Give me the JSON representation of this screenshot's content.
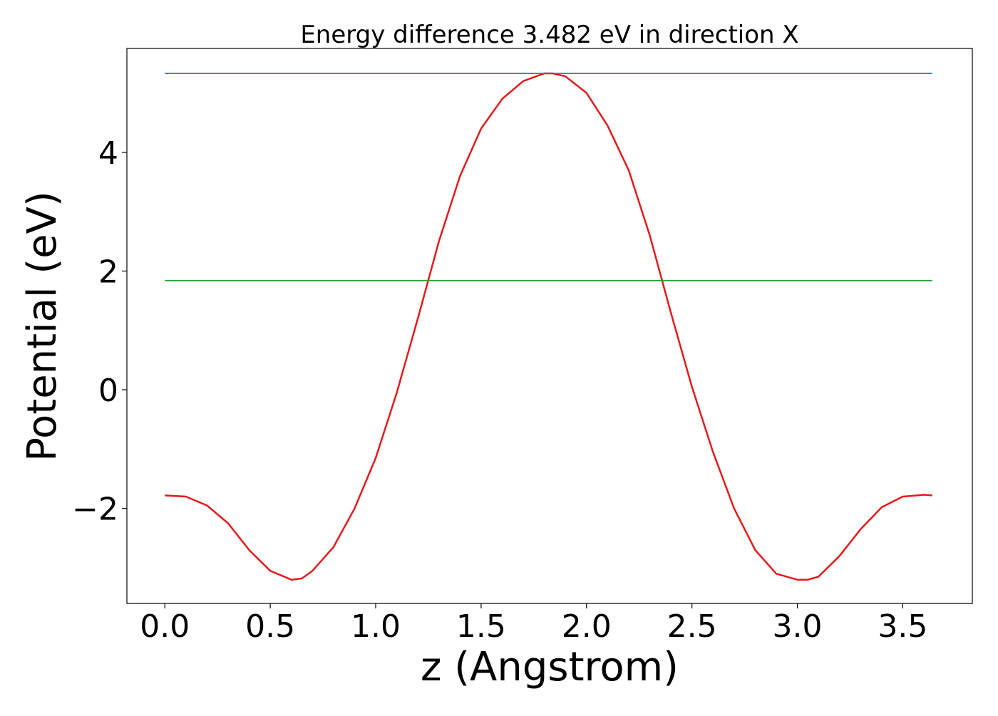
{
  "chart_data": {
    "type": "line",
    "title": "Energy difference 3.482 eV in direction X",
    "xlabel": "z (Angstrom)",
    "ylabel": "Potential (eV)",
    "xlim": [
      -0.18,
      3.83
    ],
    "ylim": [
      -3.6,
      5.75
    ],
    "grid": false,
    "x_ticks": [
      0.0,
      0.5,
      1.0,
      1.5,
      2.0,
      2.5,
      3.0,
      3.5
    ],
    "x_tick_labels": [
      "0.0",
      "0.5",
      "1.0",
      "1.5",
      "2.0",
      "2.5",
      "3.0",
      "3.5"
    ],
    "y_ticks": [
      -2,
      0,
      2,
      4
    ],
    "y_tick_labels": [
      "−2",
      "0",
      "2",
      "4"
    ],
    "series": [
      {
        "name": "potential",
        "color": "#e31a1c",
        "x": [
          0.0,
          0.1,
          0.2,
          0.3,
          0.4,
          0.5,
          0.6,
          0.65,
          0.7,
          0.8,
          0.9,
          1.0,
          1.1,
          1.2,
          1.3,
          1.4,
          1.5,
          1.6,
          1.7,
          1.8,
          1.84,
          1.9,
          2.0,
          2.1,
          2.2,
          2.3,
          2.4,
          2.5,
          2.6,
          2.7,
          2.8,
          2.9,
          3.0,
          3.05,
          3.1,
          3.2,
          3.3,
          3.4,
          3.5,
          3.6,
          3.64
        ],
        "y": [
          -1.78,
          -1.8,
          -1.95,
          -2.25,
          -2.7,
          -3.05,
          -3.2,
          -3.18,
          -3.05,
          -2.65,
          -2.0,
          -1.15,
          -0.05,
          1.2,
          2.5,
          3.6,
          4.4,
          4.9,
          5.2,
          5.33,
          5.33,
          5.28,
          5.0,
          4.45,
          3.7,
          2.6,
          1.3,
          0.05,
          -1.05,
          -2.0,
          -2.7,
          -3.1,
          -3.2,
          -3.2,
          -3.15,
          -2.8,
          -2.35,
          -1.98,
          -1.8,
          -1.77,
          -1.78
        ]
      },
      {
        "name": "max-line",
        "color": "#1f77b4",
        "x": [
          0.0,
          3.64
        ],
        "y": [
          5.33,
          5.33
        ]
      },
      {
        "name": "mean-line",
        "color": "#2ca02c",
        "x": [
          0.0,
          3.64
        ],
        "y": [
          1.84,
          1.84
        ]
      }
    ]
  }
}
